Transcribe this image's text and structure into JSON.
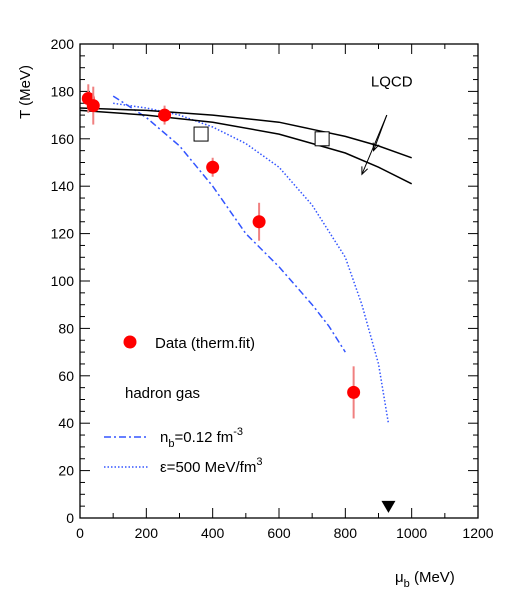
{
  "chart_data": {
    "type": "scatter",
    "title": "",
    "xlabel": "μ",
    "xlabel_sub": "b",
    "xlabel_unit": " (MeV)",
    "ylabel": "T (MeV)",
    "xlim": [
      0,
      1200
    ],
    "ylim": [
      0,
      200
    ],
    "x_ticks": [
      0,
      200,
      400,
      600,
      800,
      1000,
      1200
    ],
    "y_ticks": [
      0,
      20,
      40,
      60,
      80,
      100,
      120,
      140,
      160,
      180,
      200
    ],
    "grid": false,
    "series": [
      {
        "name": "Data (therm.fit)",
        "kind": "points",
        "color": "#ff0000",
        "points": [
          {
            "x": 25,
            "y": 177,
            "err": 6
          },
          {
            "x": 40,
            "y": 174,
            "err": 8
          },
          {
            "x": 255,
            "y": 170,
            "err": 4
          },
          {
            "x": 400,
            "y": 148,
            "err": 4
          },
          {
            "x": 540,
            "y": 125,
            "err": 8
          },
          {
            "x": 825,
            "y": 53,
            "err": 11
          }
        ]
      },
      {
        "name": "n_b=0.12 fm^-3",
        "kind": "curve",
        "style": "dashdot",
        "color": "#3355ff",
        "x": [
          100,
          200,
          300,
          400,
          500,
          600,
          700,
          750,
          800
        ],
        "y": [
          178,
          169,
          157,
          140,
          120,
          106,
          90,
          81,
          70
        ]
      },
      {
        "name": "ε=500 MeV/fm^3",
        "kind": "curve",
        "style": "dotted",
        "color": "#3355ff",
        "x": [
          100,
          200,
          300,
          400,
          500,
          600,
          700,
          800,
          850,
          900,
          930
        ],
        "y": [
          175,
          173,
          170,
          165,
          158,
          148,
          132,
          110,
          90,
          65,
          40
        ]
      },
      {
        "name": "LQCD upper",
        "kind": "curve",
        "style": "solid",
        "color": "#000000",
        "x": [
          0,
          200,
          400,
          600,
          700,
          800,
          900,
          1000
        ],
        "y": [
          173,
          172,
          170,
          167,
          164,
          161,
          157,
          152
        ]
      },
      {
        "name": "LQCD lower",
        "kind": "curve",
        "style": "solid",
        "color": "#000000",
        "x": [
          0,
          200,
          400,
          600,
          700,
          800,
          900,
          1000
        ],
        "y": [
          172,
          170,
          167,
          162,
          158,
          154,
          148,
          141
        ]
      }
    ],
    "open_squares": [
      {
        "x": 365,
        "y": 162
      },
      {
        "x": 730,
        "y": 160
      }
    ],
    "marker_triangle": {
      "x": 930,
      "y": 3
    },
    "annotation": {
      "text": "LQCD",
      "x": 940,
      "y": 182
    },
    "annotation_arrows": [
      {
        "from_x": 925,
        "from_y": 170,
        "to_x": 885,
        "to_y": 155
      },
      {
        "from_x": 925,
        "from_y": 170,
        "to_x": 850,
        "to_y": 145
      }
    ],
    "legend": {
      "position": "bottom-left",
      "data_label": "Data (therm.fit)",
      "group_title": "hadron gas",
      "nb_prefix": "n",
      "nb_sub": "b",
      "nb_mid": "=0.12 fm",
      "nb_sup": "-3",
      "eps_main": "ε=500 MeV/fm",
      "eps_sup": "3"
    }
  }
}
